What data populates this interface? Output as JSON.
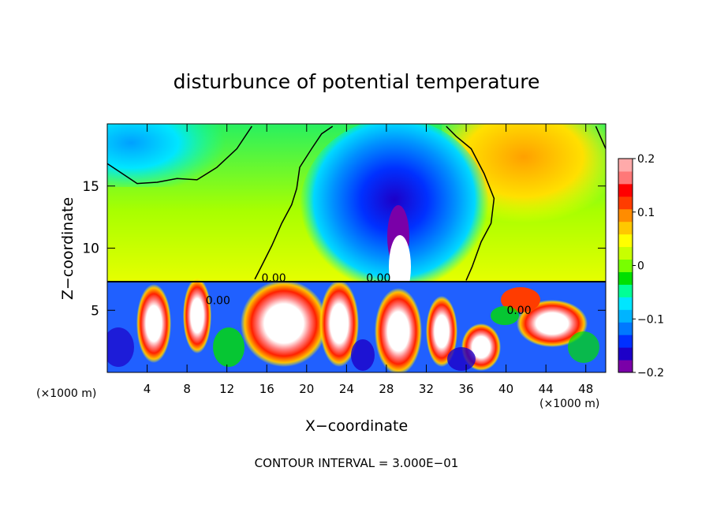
{
  "chart_data": {
    "type": "heatmap",
    "title": "disturbunce of potential temperature",
    "xlabel": "X−coordinate",
    "ylabel": "Z−coordinate",
    "x_unit_label": "(×1000 m)",
    "x_unit_label_right": "(×1000 m)",
    "footer": "CONTOUR INTERVAL = 3.000E−01",
    "xlim": [
      0,
      50
    ],
    "ylim": [
      0,
      20
    ],
    "xticks": [
      4,
      8,
      12,
      16,
      20,
      24,
      28,
      32,
      36,
      40,
      44,
      48
    ],
    "xtick_labels": [
      "4",
      "8",
      "12",
      "16",
      "20",
      "24",
      "28",
      "32",
      "36",
      "40",
      "44",
      "48"
    ],
    "yticks": [
      5,
      10,
      15
    ],
    "ytick_labels": [
      "5",
      "10",
      "15"
    ],
    "colorbar": {
      "range": [
        -0.2,
        0.2
      ],
      "ticks": [
        -0.2,
        -0.1,
        0,
        0.1,
        0.2
      ],
      "tick_labels": [
        "−0.2",
        "−0.1",
        "0",
        "0.1",
        "0.2"
      ],
      "colors": [
        "#7a00a8",
        "#1d00c8",
        "#0030ff",
        "#0078ff",
        "#00b4ff",
        "#00e6ff",
        "#00ff96",
        "#00e000",
        "#78ff00",
        "#c8ff00",
        "#ffff00",
        "#ffc800",
        "#ff8c00",
        "#ff3c00",
        "#ff0000",
        "#ff7878",
        "#ffaaaa"
      ]
    },
    "contour_labels": [
      {
        "text": "0.00",
        "x": 16.7,
        "z": 7.3
      },
      {
        "text": "0.00",
        "x": 11.1,
        "z": 5.5
      },
      {
        "text": "0.00",
        "x": 27.2,
        "z": 7.3
      },
      {
        "text": "0.00",
        "x": 41.3,
        "z": 4.7
      }
    ],
    "zero_contours": [
      [
        [
          0,
          16.8
        ],
        [
          1.5,
          16.0
        ],
        [
          3.0,
          15.2
        ],
        [
          5.0,
          15.3
        ],
        [
          7.0,
          15.6
        ],
        [
          9.0,
          15.5
        ],
        [
          11.0,
          16.5
        ],
        [
          13.0,
          18.0
        ],
        [
          14.5,
          19.8
        ]
      ],
      [
        [
          14.8,
          7.5
        ],
        [
          15.5,
          8.6
        ],
        [
          16.5,
          10.2
        ],
        [
          17.5,
          12.0
        ],
        [
          18.5,
          13.5
        ],
        [
          19.0,
          14.8
        ],
        [
          19.3,
          16.5
        ],
        [
          20.5,
          18.0
        ],
        [
          21.5,
          19.2
        ],
        [
          22.6,
          19.8
        ]
      ],
      [
        [
          34.0,
          19.8
        ],
        [
          35.0,
          19.0
        ],
        [
          36.5,
          18.0
        ],
        [
          37.8,
          16.0
        ],
        [
          38.8,
          14.0
        ],
        [
          38.5,
          12.0
        ],
        [
          37.5,
          10.5
        ],
        [
          36.6,
          8.5
        ],
        [
          36.0,
          7.4
        ]
      ],
      [
        [
          49.0,
          19.8
        ],
        [
          50.0,
          18.0
        ]
      ]
    ]
  }
}
